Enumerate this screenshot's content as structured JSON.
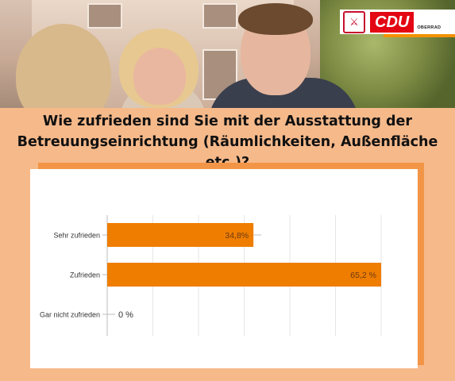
{
  "logo": {
    "crest": "⚔",
    "brand": "CDU",
    "location": "OBERRAD"
  },
  "question": {
    "line1": "Wie zufrieden sind Sie mit der Ausstattung der",
    "line2": "Betreuungseinrichtung (Räumlichkeiten, Außenfläche etc.)?"
  },
  "colors": {
    "bar": "#ef7d00",
    "background": "#f6b98a",
    "accent": "#f29547"
  },
  "chart_data": {
    "type": "bar",
    "orientation": "horizontal",
    "categories": [
      "Sehr zufrieden",
      "Zufrieden",
      "Gar nicht zufrieden"
    ],
    "values": [
      34.8,
      65.2,
      0
    ],
    "value_labels": [
      "34,8%",
      "65,2 %",
      "0 %"
    ],
    "xlim": [
      0,
      65.2
    ],
    "grid": true,
    "title": "",
    "xlabel": "",
    "ylabel": ""
  }
}
